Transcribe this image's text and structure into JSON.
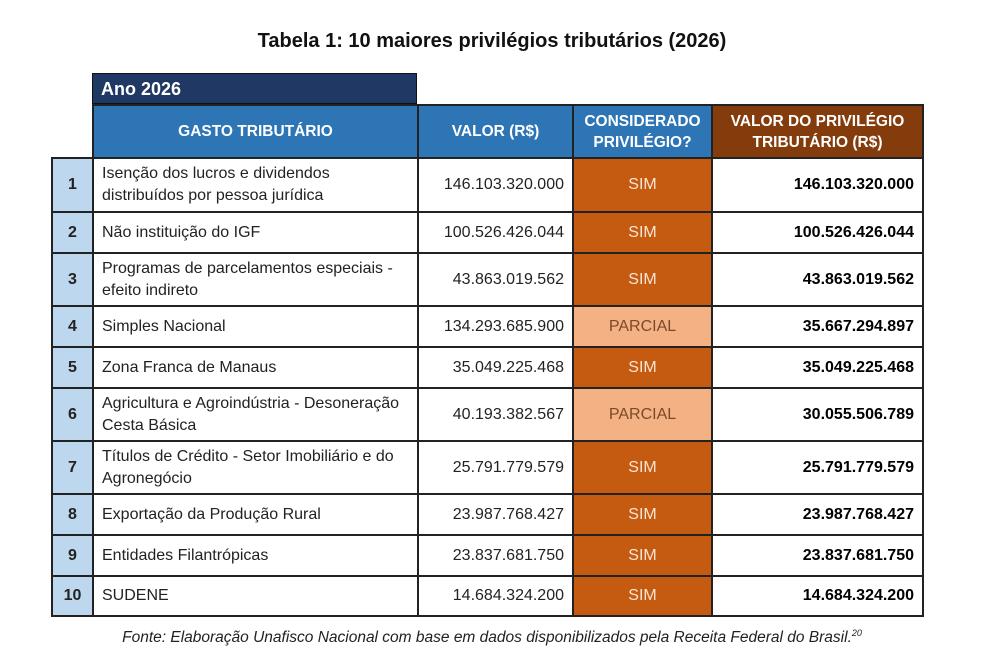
{
  "title": "Tabela 1: 10 maiores privilégios tributários (2026)",
  "year_label": "Ano 2026",
  "headers": {
    "gasto": "GASTO TRIBUTÁRIO",
    "valor": "VALOR (R$)",
    "considerado": "CONSIDERADO PRIVILÉGIO?",
    "privilegio": "VALOR DO PRIVILÉGIO TRIBUTÁRIO (R$)"
  },
  "colors": {
    "year_bg": "#1f3864",
    "header_bg": "#2e75b6",
    "priv_header_bg": "#843c0c",
    "rank_bg": "#bdd7ee",
    "sim_bg": "#c55a11",
    "parcial_bg": "#f4b183"
  },
  "rows": [
    {
      "rank": "1",
      "gasto": "Isenção dos lucros e dividendos distribuídos por pessoa jurídica",
      "valor": "146.103.320.000",
      "considerado": "SIM",
      "privilegio": "146.103.320.000"
    },
    {
      "rank": "2",
      "gasto": "Não instituição do IGF",
      "valor": "100.526.426.044",
      "considerado": "SIM",
      "privilegio": "100.526.426.044"
    },
    {
      "rank": "3",
      "gasto": "Programas de parcelamentos especiais - efeito indireto",
      "valor": "43.863.019.562",
      "considerado": "SIM",
      "privilegio": "43.863.019.562"
    },
    {
      "rank": "4",
      "gasto": "Simples Nacional",
      "valor": "134.293.685.900",
      "considerado": "PARCIAL",
      "privilegio": "35.667.294.897"
    },
    {
      "rank": "5",
      "gasto": "Zona Franca de Manaus",
      "valor": "35.049.225.468",
      "considerado": "SIM",
      "privilegio": "35.049.225.468"
    },
    {
      "rank": "6",
      "gasto": "Agricultura e Agroindústria - Desoneração Cesta Básica",
      "valor": "40.193.382.567",
      "considerado": "PARCIAL",
      "privilegio": "30.055.506.789"
    },
    {
      "rank": "7",
      "gasto": "Títulos de Crédito - Setor Imobiliário e do Agronegócio",
      "valor": "25.791.779.579",
      "considerado": "SIM",
      "privilegio": "25.791.779.579"
    },
    {
      "rank": "8",
      "gasto": "Exportação da Produção Rural",
      "valor": "23.987.768.427",
      "considerado": "SIM",
      "privilegio": "23.987.768.427"
    },
    {
      "rank": "9",
      "gasto": "Entidades Filantrópicas",
      "valor": "23.837.681.750",
      "considerado": "SIM",
      "privilegio": "23.837.681.750"
    },
    {
      "rank": "10",
      "gasto": "SUDENE",
      "valor": "14.684.324.200",
      "considerado": "SIM",
      "privilegio": "14.684.324.200"
    }
  ],
  "source": "Fonte: Elaboração Unafisco Nacional com base em dados disponibilizados pela Receita Federal do Brasil.",
  "footnote_ref": "20"
}
